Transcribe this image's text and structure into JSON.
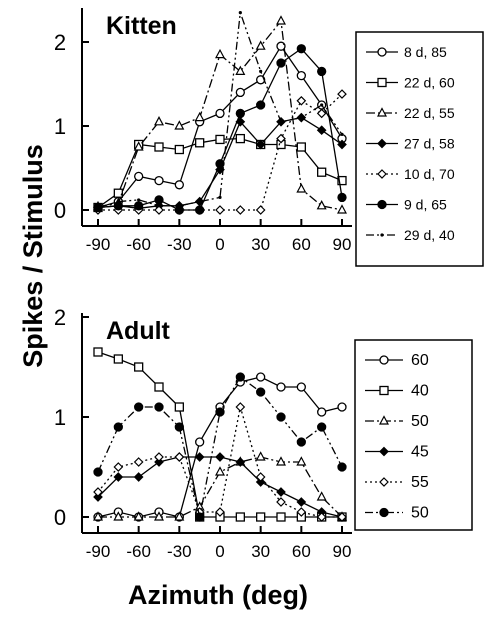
{
  "chart_data": [
    {
      "type": "line",
      "title": "Kitten",
      "xlabel": "Azimuth (deg)",
      "ylabel": "Spikes / Stimulus",
      "xlim": [
        -90,
        90
      ],
      "ylim": [
        0,
        2
      ],
      "xticks": [
        "-90",
        "-60",
        "-30",
        "0",
        "30",
        "60",
        "90"
      ],
      "yticks": [
        "0",
        "1",
        "2"
      ],
      "legend_position": "right",
      "series": [
        {
          "name": "8 d,  85",
          "marker": "circle-open",
          "dash": "solid",
          "x": [
            -90,
            -75,
            -60,
            -45,
            -30,
            -15,
            0,
            15,
            30,
            45,
            60,
            75,
            90
          ],
          "y": [
            0.03,
            0.1,
            0.4,
            0.35,
            0.3,
            1.05,
            1.15,
            1.4,
            1.55,
            1.95,
            1.6,
            1.25,
            0.85
          ]
        },
        {
          "name": "22 d, 60",
          "marker": "square-open",
          "dash": "solid",
          "x": [
            -90,
            -75,
            -60,
            -45,
            -30,
            -15,
            0,
            15,
            30,
            45,
            60,
            75,
            90
          ],
          "y": [
            0.03,
            0.2,
            0.78,
            0.75,
            0.72,
            0.8,
            0.84,
            0.85,
            0.78,
            0.78,
            0.75,
            0.45,
            0.35
          ]
        },
        {
          "name": "22 d, 55",
          "marker": "triangle-open",
          "dash": "dashdot",
          "x": [
            -90,
            -75,
            -60,
            -45,
            -30,
            -15,
            0,
            15,
            30,
            45,
            60,
            75,
            90
          ],
          "y": [
            0.04,
            0.08,
            0.75,
            1.05,
            1.0,
            1.1,
            1.85,
            1.65,
            1.95,
            2.25,
            0.25,
            0.05,
            0.0
          ]
        },
        {
          "name": "27 d, 58",
          "marker": "diamond-filled",
          "dash": "solid",
          "x": [
            -90,
            -75,
            -60,
            -45,
            -30,
            -15,
            0,
            15,
            30,
            45,
            60,
            75,
            90
          ],
          "y": [
            0.03,
            0.05,
            0.02,
            0.05,
            0.05,
            0.1,
            0.48,
            1.05,
            0.78,
            1.05,
            1.1,
            0.95,
            0.78
          ]
        },
        {
          "name": "10 d, 70",
          "marker": "diamond-open",
          "dash": "dotted",
          "x": [
            -90,
            -75,
            -60,
            -45,
            -30,
            -15,
            0,
            15,
            30,
            45,
            60,
            75,
            90
          ],
          "y": [
            0.0,
            0.0,
            0.0,
            0.0,
            0.0,
            0.0,
            0.0,
            0.0,
            0.0,
            0.85,
            1.3,
            1.15,
            1.38
          ]
        },
        {
          "name": "9 d,  65",
          "marker": "circle-filled",
          "dash": "solid",
          "x": [
            -90,
            -75,
            -60,
            -45,
            -30,
            -15,
            0,
            15,
            30,
            45,
            60,
            75,
            90
          ],
          "y": [
            0.03,
            0.05,
            0.05,
            0.12,
            0.0,
            0.0,
            0.55,
            1.15,
            1.25,
            1.75,
            1.92,
            1.65,
            0.15
          ]
        },
        {
          "name": "29 d, 40",
          "marker": "dot",
          "dash": "dashdotdot",
          "x": [
            -75,
            -60,
            -45,
            -30,
            -15,
            0,
            15,
            30,
            45,
            60,
            75,
            90
          ],
          "y": [
            0.1,
            0.12,
            0.05,
            0.05,
            0.1,
            0.15,
            2.35,
            1.65,
            1.05,
            1.1,
            1.25,
            0.9
          ]
        }
      ]
    },
    {
      "type": "line",
      "title": "Adult",
      "xlabel": "Azimuth (deg)",
      "ylabel": "Spikes / Stimulus",
      "xlim": [
        -90,
        90
      ],
      "ylim": [
        0,
        2
      ],
      "xticks": [
        "-90",
        "-60",
        "-30",
        "0",
        "30",
        "60",
        "90"
      ],
      "yticks": [
        "0",
        "1",
        "2"
      ],
      "legend_position": "right",
      "series": [
        {
          "name": "60",
          "marker": "circle-open",
          "dash": "solid",
          "x": [
            -90,
            -75,
            -60,
            -45,
            -30,
            -15,
            0,
            15,
            30,
            45,
            60,
            75,
            90
          ],
          "y": [
            0.0,
            0.05,
            0.0,
            0.05,
            0.0,
            0.75,
            1.1,
            1.35,
            1.4,
            1.3,
            1.3,
            1.05,
            1.1
          ]
        },
        {
          "name": "40",
          "marker": "square-open",
          "dash": "solid",
          "x": [
            -90,
            -75,
            -60,
            -45,
            -30,
            -15,
            0,
            15,
            30,
            45,
            60,
            75,
            90
          ],
          "y": [
            1.65,
            1.58,
            1.5,
            1.3,
            1.1,
            0.0,
            0.0,
            0.0,
            0.0,
            0.0,
            0.0,
            0.0,
            0.0
          ]
        },
        {
          "name": "50",
          "marker": "triangle-open",
          "dash": "dashdot",
          "x": [
            -90,
            -75,
            -60,
            -45,
            -30,
            -15,
            0,
            15,
            30,
            45,
            60,
            75,
            90
          ],
          "y": [
            0.0,
            0.0,
            0.0,
            0.0,
            0.0,
            0.1,
            0.45,
            0.55,
            0.6,
            0.55,
            0.55,
            0.2,
            0.0
          ]
        },
        {
          "name": "45",
          "marker": "diamond-filled",
          "dash": "solid",
          "x": [
            -90,
            -75,
            -60,
            -45,
            -30,
            -15,
            0,
            15,
            30,
            45,
            60,
            75,
            90
          ],
          "y": [
            0.2,
            0.4,
            0.4,
            0.55,
            0.6,
            0.6,
            0.6,
            0.55,
            0.35,
            0.25,
            0.15,
            0.05,
            0.0
          ]
        },
        {
          "name": "55",
          "marker": "diamond-open",
          "dash": "dotted",
          "x": [
            -90,
            -75,
            -60,
            -45,
            -30,
            -15,
            0,
            15,
            30,
            45,
            60,
            75,
            90
          ],
          "y": [
            0.25,
            0.5,
            0.55,
            0.6,
            0.6,
            0.05,
            0.05,
            1.1,
            0.4,
            0.15,
            0.05,
            0.0,
            0.0
          ]
        },
        {
          "name": "50",
          "marker": "circle-filled",
          "dash": "dashdotdot",
          "x": [
            -90,
            -75,
            -60,
            -45,
            -30,
            -15,
            0,
            15,
            30,
            45,
            60,
            75,
            90
          ],
          "y": [
            0.45,
            0.9,
            1.1,
            1.1,
            0.9,
            0.0,
            1.05,
            1.4,
            1.25,
            1.0,
            0.75,
            0.9,
            0.5
          ]
        }
      ]
    }
  ]
}
